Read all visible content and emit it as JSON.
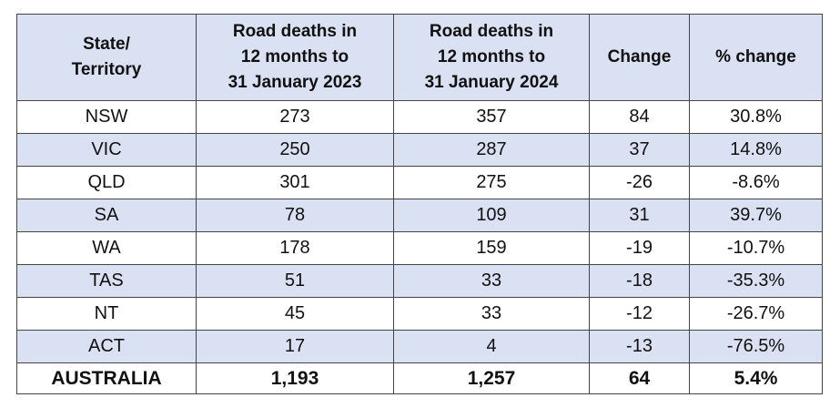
{
  "table": {
    "headers": [
      [
        "State/",
        "Territory"
      ],
      [
        "Road deaths in",
        "12 months to",
        "31 January 2023"
      ],
      [
        "Road deaths in",
        "12 months to",
        "31 January 2024"
      ],
      [
        "Change"
      ],
      [
        "% change"
      ]
    ],
    "rows": [
      [
        "NSW",
        "273",
        "357",
        "84",
        "30.8%"
      ],
      [
        "VIC",
        "250",
        "287",
        "37",
        "14.8%"
      ],
      [
        "QLD",
        "301",
        "275",
        "-26",
        "-8.6%"
      ],
      [
        "SA",
        "78",
        "109",
        "31",
        "39.7%"
      ],
      [
        "WA",
        "178",
        "159",
        "-19",
        "-10.7%"
      ],
      [
        "TAS",
        "51",
        "33",
        "-18",
        "-35.3%"
      ],
      [
        "NT",
        "45",
        "33",
        "-12",
        "-26.7%"
      ],
      [
        "ACT",
        "17",
        "4",
        "-13",
        "-76.5%"
      ]
    ],
    "total": [
      "AUSTRALIA",
      "1,193",
      "1,257",
      "64",
      "5.4%"
    ]
  }
}
